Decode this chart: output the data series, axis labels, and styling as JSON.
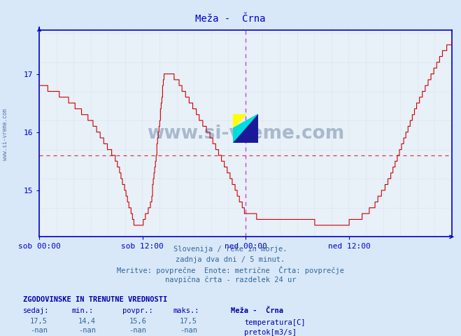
{
  "title": "Meža -  Črna",
  "bg_color": "#d8e8f8",
  "plot_bg_color": "#e8f0f8",
  "grid_color": "#c8d4e0",
  "line_color": "#cc0000",
  "axis_color": "#0000cc",
  "dashed_vert_color": "#cc44cc",
  "avg_line_color": "#cc0000",
  "avg_line_value": 15.6,
  "ylim_min": 14.2,
  "ylim_max": 17.75,
  "yticks": [
    15,
    16,
    17
  ],
  "xlabel_ticks": [
    "sob 00:00",
    "sob 12:00",
    "ned 00:00",
    "ned 12:00"
  ],
  "subtitle_lines": [
    "Slovenija / reke in morje.",
    "zadnja dva dni / 5 minut.",
    "Meritve: povprečne  Enote: metrične  Črta: povprečje",
    "navpična črta - razdelek 24 ur"
  ],
  "table_header": "ZGODOVINSKE IN TRENUTNE VREDNOSTI",
  "col_headers": [
    "sedaj:",
    "min.:",
    "povpr.:",
    "maks.:"
  ],
  "row1_values": [
    "17,5",
    "14,4",
    "15,6",
    "17,5"
  ],
  "row2_values": [
    "-nan",
    "-nan",
    "-nan",
    "-nan"
  ],
  "legend_items": [
    {
      "label": "temperatura[C]",
      "color": "#cc0000"
    },
    {
      "label": "pretok[m3/s]",
      "color": "#00cc00"
    }
  ],
  "station_label": "Meža -  Črna",
  "watermark_text": "www.si-vreme.com",
  "watermark_color": "#1a3a6a",
  "side_label": "www.si-vreme.com"
}
